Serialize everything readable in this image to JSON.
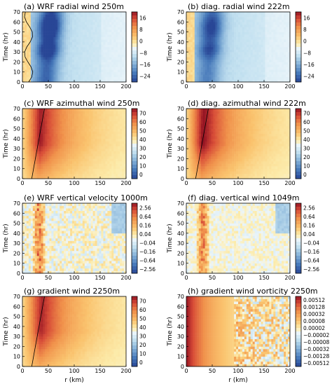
{
  "chart_data": [
    {
      "id": "a",
      "type": "heatmap",
      "title": "(a) WRF radial wind 250m",
      "xlabel": "",
      "ylabel": "Time (hr)",
      "xlim": [
        0,
        200
      ],
      "ylim": [
        0,
        70
      ],
      "x_ticks": [
        "0",
        "50",
        "100",
        "150",
        "200"
      ],
      "y_ticks": [
        "0",
        "10",
        "20",
        "30",
        "40",
        "50",
        "60",
        "70"
      ],
      "colorbar": {
        "range": [
          -24,
          24
        ],
        "labels": [
          "16",
          "8",
          "0",
          "−8",
          "−16",
          "−24"
        ],
        "label_values": [
          16,
          8,
          0,
          -8,
          -16,
          -24
        ]
      },
      "features": {
        "kind": "radial",
        "core_r": 45,
        "strength": 1.0,
        "contour": true
      }
    },
    {
      "id": "b",
      "type": "heatmap",
      "title": "(b) diag. radial wind 222m",
      "xlabel": "",
      "ylabel": "Time (hr)",
      "xlim": [
        0,
        200
      ],
      "ylim": [
        0,
        70
      ],
      "x_ticks": [
        "0",
        "50",
        "100",
        "150",
        "200"
      ],
      "y_ticks": [
        "0",
        "10",
        "20",
        "30",
        "40",
        "50",
        "60",
        "70"
      ],
      "colorbar": {
        "range": [
          -24,
          24
        ],
        "labels": [
          "16",
          "8",
          "0",
          "−8",
          "−16",
          "−24"
        ],
        "label_values": [
          16,
          8,
          0,
          -8,
          -16,
          -24
        ]
      },
      "features": {
        "kind": "radial",
        "core_r": 40,
        "strength": 0.75,
        "contour": false
      }
    },
    {
      "id": "c",
      "type": "heatmap",
      "title": "(c) WRF azimuthal wind 250m",
      "xlabel": "",
      "ylabel": "Time (hr)",
      "xlim": [
        0,
        200
      ],
      "ylim": [
        0,
        70
      ],
      "x_ticks": [
        "0",
        "50",
        "100",
        "150",
        "200"
      ],
      "y_ticks": [
        "0",
        "10",
        "20",
        "30",
        "40",
        "50",
        "60",
        "70"
      ],
      "colorbar": {
        "range": [
          0,
          70
        ],
        "labels": [
          "70",
          "60",
          "50",
          "40",
          "30",
          "20",
          "10",
          "0"
        ],
        "label_values": [
          70,
          60,
          50,
          40,
          30,
          20,
          10,
          0
        ]
      },
      "features": {
        "kind": "azimuthal",
        "core_r": 32,
        "peak": 62
      }
    },
    {
      "id": "d",
      "type": "heatmap",
      "title": "(d) diag. azimuthal wind 222m",
      "xlabel": "",
      "ylabel": "Time (hr)",
      "xlim": [
        0,
        200
      ],
      "ylim": [
        0,
        70
      ],
      "x_ticks": [
        "0",
        "50",
        "100",
        "150",
        "200"
      ],
      "y_ticks": [
        "0",
        "10",
        "20",
        "30",
        "40",
        "50",
        "60",
        "70"
      ],
      "colorbar": {
        "range": [
          0,
          70
        ],
        "labels": [
          "70",
          "60",
          "50",
          "40",
          "30",
          "20",
          "10",
          "0"
        ],
        "label_values": [
          70,
          60,
          50,
          40,
          30,
          20,
          10,
          0
        ]
      },
      "features": {
        "kind": "azimuthal",
        "core_r": 30,
        "peak": 66
      }
    },
    {
      "id": "e",
      "type": "heatmap",
      "title": "(e) WRF vertical velocity 1000m",
      "xlabel": "",
      "ylabel": "Time (hr)",
      "xlim": [
        0,
        200
      ],
      "ylim": [
        0,
        70
      ],
      "x_ticks": [
        "0",
        "50",
        "100",
        "150",
        "200"
      ],
      "y_ticks": [
        "0",
        "10",
        "20",
        "30",
        "40",
        "50",
        "60",
        "70"
      ],
      "colorbar": {
        "range": [
          -2.56,
          2.56
        ],
        "labels": [
          "2.56",
          "0.64",
          "0.16",
          "0.04",
          "−0.04",
          "−0.16",
          "−0.64",
          "−2.56"
        ],
        "label_values": [
          2.56,
          0.64,
          0.16,
          0.04,
          -0.04,
          -0.16,
          -0.64,
          -2.56
        ]
      },
      "features": {
        "kind": "vertical",
        "noise": 1.0
      }
    },
    {
      "id": "f",
      "type": "heatmap",
      "title": "(f) diag. vertical wind 1049m",
      "xlabel": "",
      "ylabel": "Time (hr)",
      "xlim": [
        0,
        200
      ],
      "ylim": [
        0,
        70
      ],
      "x_ticks": [
        "0",
        "50",
        "100",
        "150",
        "200"
      ],
      "y_ticks": [
        "0",
        "10",
        "20",
        "30",
        "40",
        "50",
        "60",
        "70"
      ],
      "colorbar": {
        "range": [
          -2.56,
          2.56
        ],
        "labels": [
          "2.56",
          "0.64",
          "0.16",
          "0.04",
          "−0.04",
          "−0.16",
          "−0.64",
          "−2.56"
        ],
        "label_values": [
          2.56,
          0.64,
          0.16,
          0.04,
          -0.04,
          -0.16,
          -0.64,
          -2.56
        ]
      },
      "features": {
        "kind": "vertical",
        "noise": 0.6
      }
    },
    {
      "id": "g",
      "type": "heatmap",
      "title": "(g) gradient wind 2250m",
      "xlabel": "r (km)",
      "ylabel": "Time (hr)",
      "xlim": [
        0,
        200
      ],
      "ylim": [
        0,
        70
      ],
      "x_ticks": [
        "0",
        "50",
        "100",
        "150",
        "200"
      ],
      "y_ticks": [
        "0",
        "10",
        "20",
        "30",
        "40",
        "50",
        "60",
        "70"
      ],
      "colorbar": {
        "range": [
          0,
          70
        ],
        "labels": [
          "70",
          "60",
          "50",
          "40",
          "30",
          "20",
          "10",
          "0"
        ],
        "label_values": [
          70,
          60,
          50,
          40,
          30,
          20,
          10,
          0
        ]
      },
      "features": {
        "kind": "azimuthal",
        "core_r": 34,
        "peak": 60
      }
    },
    {
      "id": "h",
      "type": "heatmap",
      "title": "(h) gradient wind vorticity 2250m",
      "xlabel": "r (km)",
      "ylabel": "Time (hr)",
      "xlim": [
        0,
        200
      ],
      "ylim": [
        0,
        70
      ],
      "x_ticks": [
        "0",
        "50",
        "100",
        "150",
        "200"
      ],
      "y_ticks": [
        "0",
        "10",
        "20",
        "30",
        "40",
        "50",
        "60",
        "70"
      ],
      "colorbar": {
        "range": [
          -0.00512,
          0.00512
        ],
        "labels": [
          "0.00512",
          "0.00128",
          "0.00032",
          "0.00008",
          "0.00002",
          "−0.00002",
          "−0.00008",
          "−0.00032",
          "−0.00128",
          "−0.00512"
        ],
        "label_values": [
          0.00512,
          0.00128,
          0.00032,
          8e-05,
          2e-05,
          -2e-05,
          -8e-05,
          -0.00032,
          -0.00128,
          -0.00512
        ]
      },
      "features": {
        "kind": "vorticity"
      }
    }
  ]
}
